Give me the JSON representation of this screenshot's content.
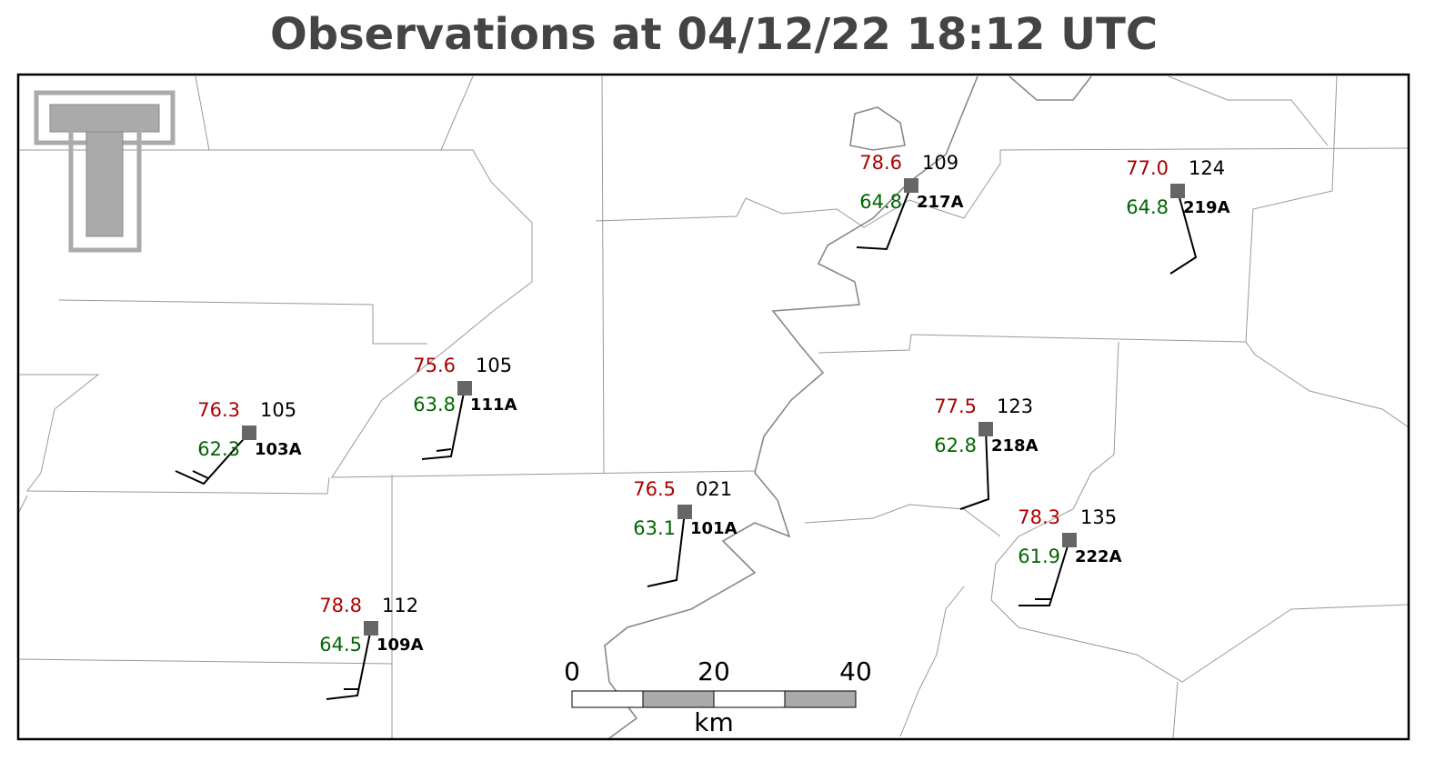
{
  "title": "Observations at 04/12/22 18:12 UTC",
  "stations": [
    {
      "id": "217A",
      "temperature": "78.6",
      "dewpoint": "64.8",
      "pressure": "109"
    },
    {
      "id": "219A",
      "temperature": "77.0",
      "dewpoint": "64.8",
      "pressure": "124"
    },
    {
      "id": "111A",
      "temperature": "75.6",
      "dewpoint": "63.8",
      "pressure": "105"
    },
    {
      "id": "103A",
      "temperature": "76.3",
      "dewpoint": "62.3",
      "pressure": "105"
    },
    {
      "id": "218A",
      "temperature": "77.5",
      "dewpoint": "62.8",
      "pressure": "123"
    },
    {
      "id": "101A",
      "temperature": "76.5",
      "dewpoint": "63.1",
      "pressure": "021"
    },
    {
      "id": "222A",
      "temperature": "78.3",
      "dewpoint": "61.9",
      "pressure": "135"
    },
    {
      "id": "109A",
      "temperature": "78.8",
      "dewpoint": "64.5",
      "pressure": "112"
    }
  ],
  "scale_bar": {
    "labels": [
      "0",
      "20",
      "40"
    ],
    "unit": "km"
  }
}
